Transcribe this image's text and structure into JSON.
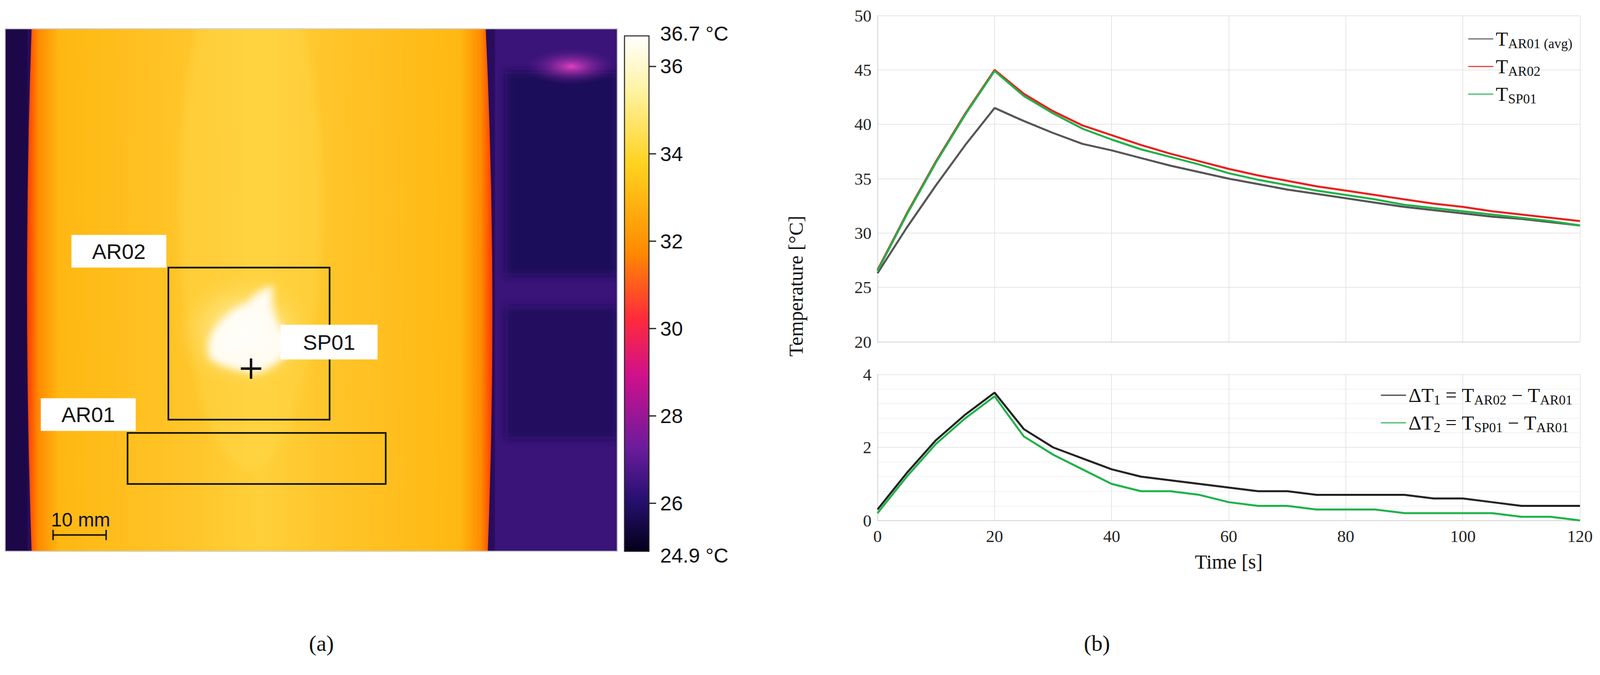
{
  "panel_a": {
    "label": "(a)",
    "type": "thermal_image",
    "scale_bar": "10 mm",
    "regions": [
      {
        "name": "AR02",
        "kind": "area"
      },
      {
        "name": "SP01",
        "kind": "spot"
      },
      {
        "name": "AR01",
        "kind": "area"
      }
    ],
    "colorbar": {
      "range": [
        24.9,
        36.7
      ],
      "range_labels": [
        "24.9 °C",
        "36.7 °C"
      ],
      "ticks": [
        26,
        28,
        30,
        32,
        34,
        36
      ]
    }
  },
  "panel_b": {
    "label": "(b)",
    "ylabel": "Temperature [°C]"
  },
  "chart_data": [
    {
      "type": "line",
      "x": [
        0,
        5,
        10,
        15,
        20,
        25,
        30,
        35,
        40,
        45,
        50,
        55,
        60,
        65,
        70,
        75,
        80,
        85,
        90,
        95,
        100,
        105,
        110,
        115,
        120
      ],
      "xlim": [
        0,
        120
      ],
      "xticks": [
        0,
        20,
        40,
        60,
        80,
        100,
        120
      ],
      "ylim": [
        20,
        50
      ],
      "yticks": [
        20,
        25,
        30,
        35,
        40,
        45,
        50
      ],
      "grid": true,
      "legend": "upper right",
      "tick_labels": "y",
      "series": [
        {
          "name": "TAR01 (avg)",
          "color": "#555555",
          "values": [
            26.3,
            30.5,
            34.4,
            38.1,
            41.5,
            40.3,
            39.2,
            38.2,
            37.6,
            36.9,
            36.2,
            35.6,
            35.0,
            34.5,
            34.0,
            33.6,
            33.2,
            32.8,
            32.4,
            32.1,
            31.8,
            31.5,
            31.3,
            31.0,
            30.7
          ]
        },
        {
          "name": "TAR02",
          "color": "#e8201e",
          "values": [
            26.6,
            31.8,
            36.6,
            41.0,
            45.0,
            42.8,
            41.2,
            39.9,
            39.0,
            38.1,
            37.3,
            36.6,
            35.9,
            35.3,
            34.8,
            34.3,
            33.9,
            33.5,
            33.1,
            32.7,
            32.4,
            32.0,
            31.7,
            31.4,
            31.1
          ]
        },
        {
          "name": "TSP01",
          "color": "#1fb24a",
          "values": [
            26.5,
            31.7,
            36.5,
            40.9,
            44.9,
            42.6,
            41.0,
            39.6,
            38.6,
            37.7,
            37.0,
            36.3,
            35.5,
            34.9,
            34.4,
            33.9,
            33.5,
            33.1,
            32.6,
            32.3,
            32.0,
            31.7,
            31.4,
            31.1,
            30.7
          ]
        }
      ]
    },
    {
      "type": "line",
      "xlabel": "Time [s]",
      "x": [
        0,
        5,
        10,
        15,
        20,
        25,
        30,
        35,
        40,
        45,
        50,
        55,
        60,
        65,
        70,
        75,
        80,
        85,
        90,
        95,
        100,
        105,
        110,
        115,
        120
      ],
      "xlim": [
        0,
        120
      ],
      "xticks": [
        0,
        20,
        40,
        60,
        80,
        100,
        120
      ],
      "ylim": [
        0,
        4
      ],
      "yticks": [
        0,
        2,
        4
      ],
      "grid": true,
      "legend": "upper right",
      "series": [
        {
          "name": "ΔT1 = TAR02 − TAR01",
          "color": "#222222",
          "values": [
            0.3,
            1.3,
            2.2,
            2.9,
            3.5,
            2.5,
            2.0,
            1.7,
            1.4,
            1.2,
            1.1,
            1.0,
            0.9,
            0.8,
            0.8,
            0.7,
            0.7,
            0.7,
            0.7,
            0.6,
            0.6,
            0.5,
            0.4,
            0.4,
            0.4
          ]
        },
        {
          "name": "ΔT2 = TSP01 − TAR01",
          "color": "#1fb24a",
          "values": [
            0.2,
            1.2,
            2.1,
            2.8,
            3.4,
            2.3,
            1.8,
            1.4,
            1.0,
            0.8,
            0.8,
            0.7,
            0.5,
            0.4,
            0.4,
            0.3,
            0.3,
            0.3,
            0.2,
            0.2,
            0.2,
            0.2,
            0.1,
            0.1,
            0.0
          ]
        }
      ]
    }
  ]
}
